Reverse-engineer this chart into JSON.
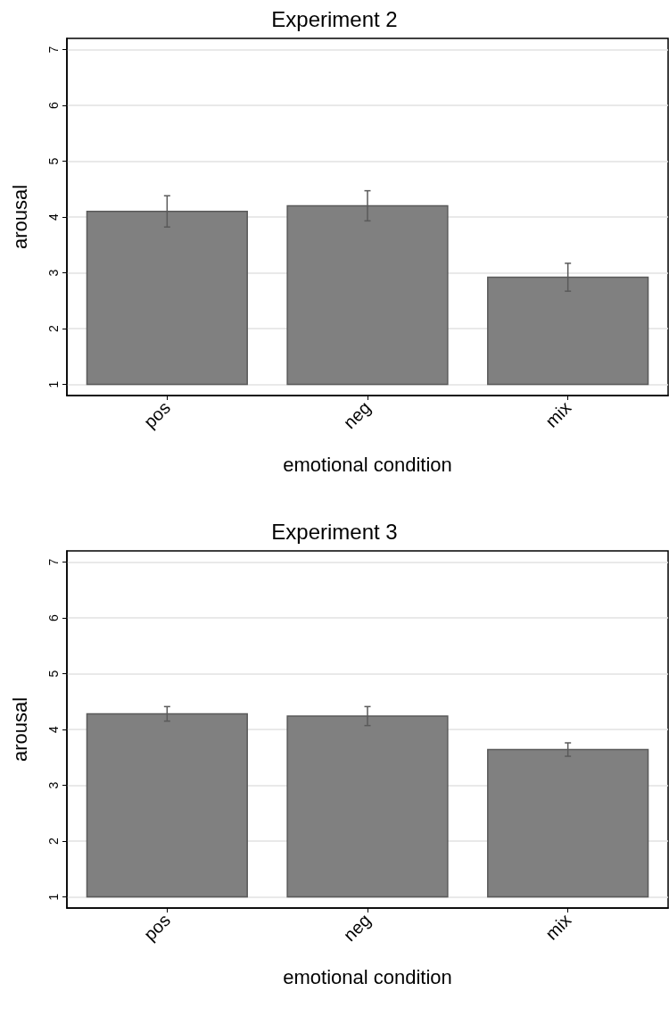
{
  "chart_data": [
    {
      "type": "bar",
      "title": "Experiment 2",
      "xlabel": "emotional condition",
      "ylabel": "arousal",
      "categories": [
        "pos",
        "neg",
        "mix"
      ],
      "base": [
        1,
        1,
        1
      ],
      "values": [
        3.1,
        3.2,
        1.92
      ],
      "errors": [
        0.28,
        0.27,
        0.25
      ],
      "color": "#808080",
      "ylim": [
        0.8,
        7.2
      ],
      "yticks": [
        1,
        2,
        3,
        4,
        5,
        6,
        7
      ],
      "grid": "y"
    },
    {
      "type": "bar",
      "title": "Experiment 3",
      "xlabel": "emotional condition",
      "ylabel": "arousal",
      "categories": [
        "pos",
        "neg",
        "mix"
      ],
      "base": [
        1,
        1,
        1
      ],
      "values": [
        3.28,
        3.24,
        2.64
      ],
      "errors": [
        0.13,
        0.17,
        0.12
      ],
      "color": "#808080",
      "ylim": [
        0.8,
        7.2
      ],
      "yticks": [
        1,
        2,
        3,
        4,
        5,
        6,
        7
      ],
      "grid": "y"
    }
  ]
}
